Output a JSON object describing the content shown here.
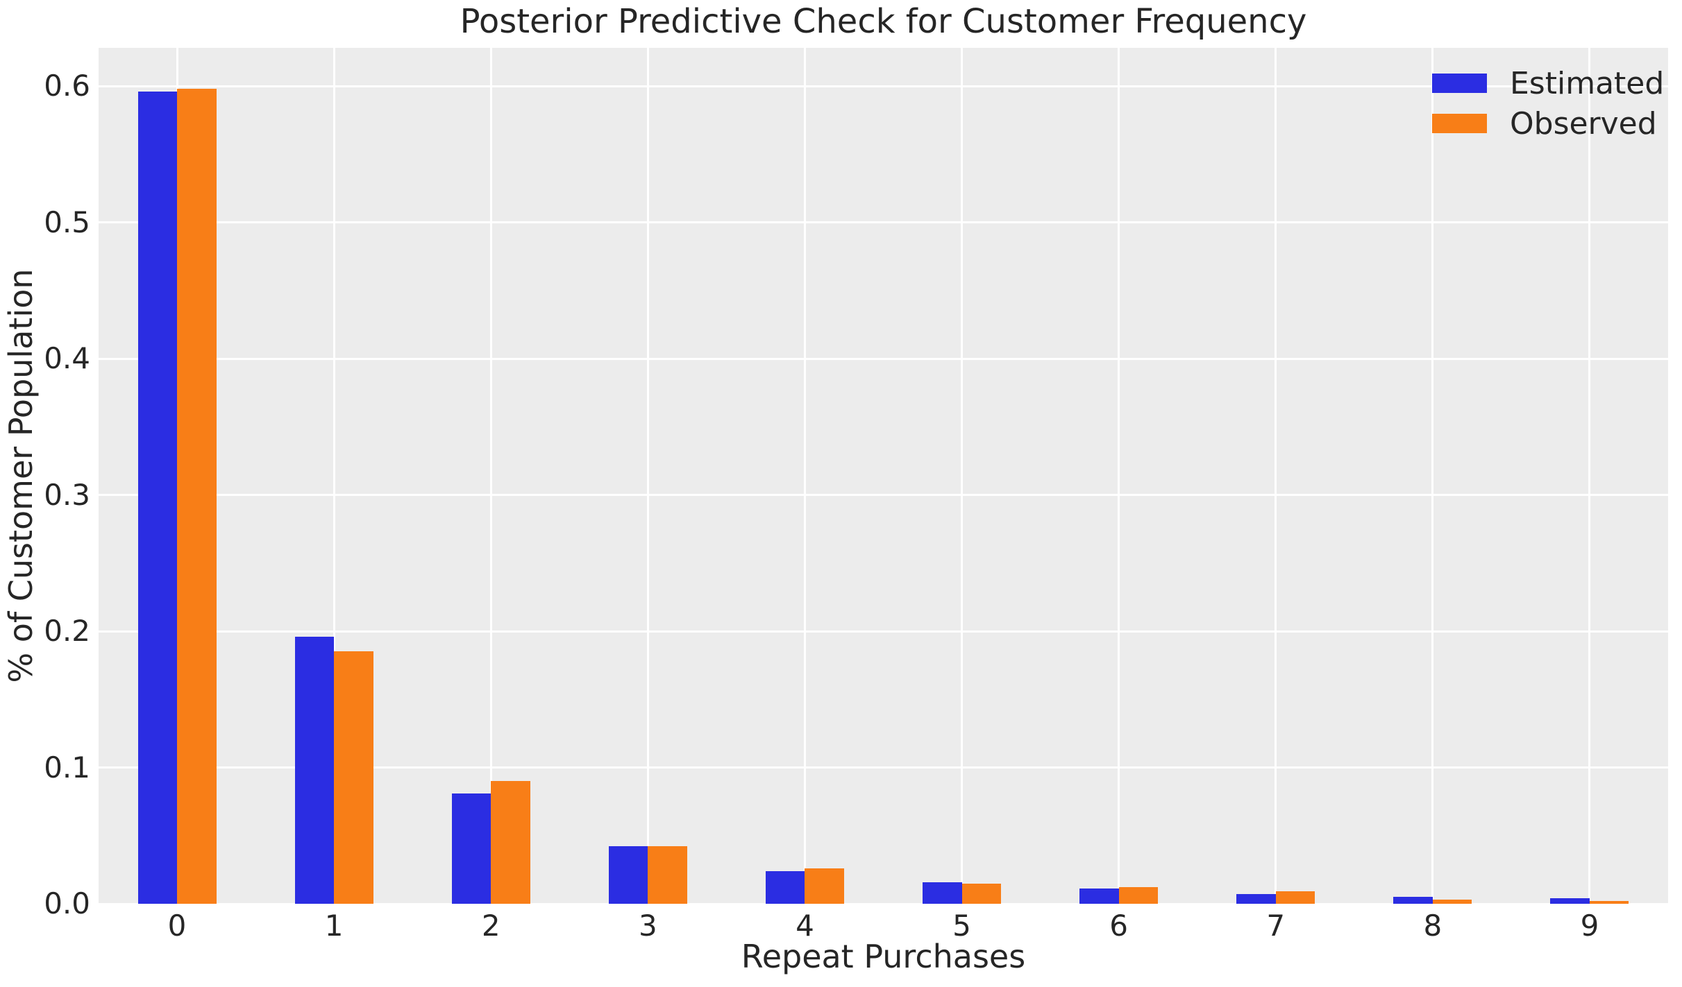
{
  "chart_data": {
    "type": "bar",
    "title": "Posterior Predictive Check for Customer Frequency",
    "xlabel": "Repeat Purchases",
    "ylabel": "% of Customer Population",
    "categories": [
      "0",
      "1",
      "2",
      "3",
      "4",
      "5",
      "6",
      "7",
      "8",
      "9"
    ],
    "series": [
      {
        "name": "Estimated",
        "color": "#2b2de2",
        "values": [
          0.596,
          0.196,
          0.081,
          0.042,
          0.024,
          0.016,
          0.011,
          0.007,
          0.005,
          0.004
        ]
      },
      {
        "name": "Observed",
        "color": "#f87e17",
        "values": [
          0.598,
          0.185,
          0.09,
          0.042,
          0.026,
          0.015,
          0.012,
          0.009,
          0.003,
          0.002
        ]
      }
    ],
    "ytick_labels": [
      "0.0",
      "0.1",
      "0.2",
      "0.3",
      "0.4",
      "0.5",
      "0.6"
    ],
    "ylim": [
      0,
      0.628
    ],
    "grid": true,
    "legend_position": "upper right",
    "plot_background": "#ececec",
    "grid_color": "#ffffff",
    "text_color": "#262626"
  }
}
